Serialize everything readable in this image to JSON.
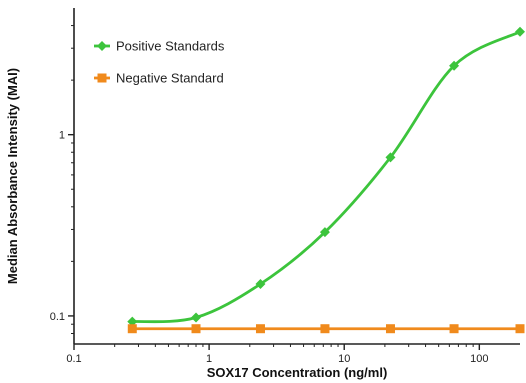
{
  "chart_data": {
    "type": "line",
    "title": "",
    "xlabel": "SOX17 Concentration (ng/ml)",
    "ylabel": "Median Absorbance Intensity (MAI)",
    "x_scale": "log",
    "y_scale": "log",
    "xlim": [
      0.1,
      200
    ],
    "ylim": [
      0.07,
      5
    ],
    "x_ticks": [
      0.1,
      1,
      10,
      100
    ],
    "x_tick_labels": [
      "0.1",
      "1",
      "10",
      "100"
    ],
    "y_ticks": [
      0.1,
      1
    ],
    "y_tick_labels": [
      "0.1",
      "1"
    ],
    "grid": false,
    "legend_position": "top-left",
    "series": [
      {
        "name": "Positive Standards",
        "color": "#3cc43c",
        "marker": "diamond",
        "fit": "smooth curve",
        "x": [
          0.27,
          0.8,
          2.4,
          7.2,
          22,
          65,
          200
        ],
        "y": [
          0.093,
          0.098,
          0.15,
          0.29,
          0.75,
          2.4,
          3.7
        ]
      },
      {
        "name": "Negative Standard",
        "color": "#f08a1c",
        "marker": "square",
        "fit": "straight line",
        "x": [
          0.27,
          0.8,
          2.4,
          7.2,
          22,
          65,
          200
        ],
        "y": [
          0.085,
          0.085,
          0.085,
          0.085,
          0.085,
          0.085,
          0.085
        ]
      }
    ]
  }
}
